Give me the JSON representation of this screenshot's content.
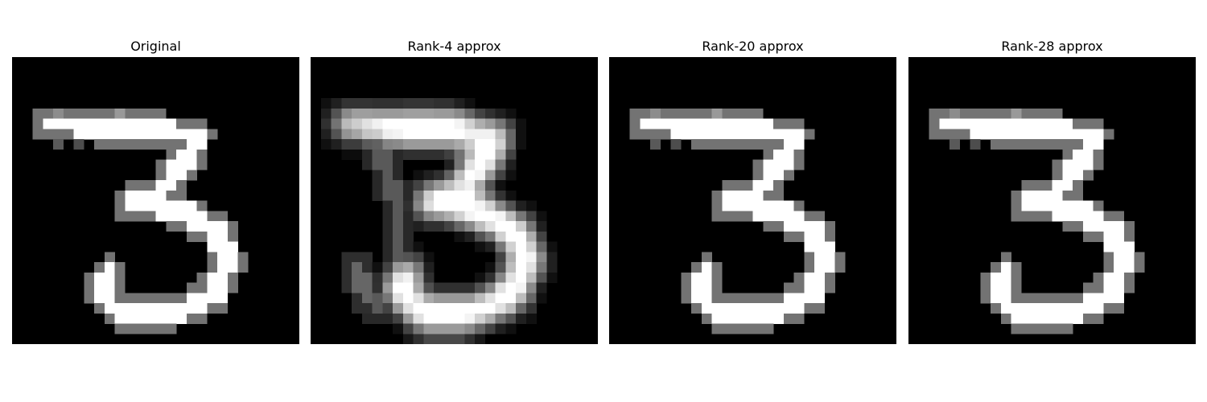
{
  "panels": [
    {
      "title": "Original",
      "image": {
        "shape": "digit",
        "variant": "original",
        "label": "handwritten digit 3"
      }
    },
    {
      "title": "Rank-4 approx",
      "image": {
        "shape": "digit",
        "variant": "blurry-low-rank",
        "label": "low rank reconstruction of 3"
      }
    },
    {
      "title": "Rank-20 approx",
      "image": {
        "shape": "digit",
        "variant": "near-original",
        "label": "reconstruction of 3"
      }
    },
    {
      "title": "Rank-28 approx",
      "image": {
        "shape": "digit",
        "variant": "original",
        "label": "reconstruction of 3"
      }
    }
  ]
}
